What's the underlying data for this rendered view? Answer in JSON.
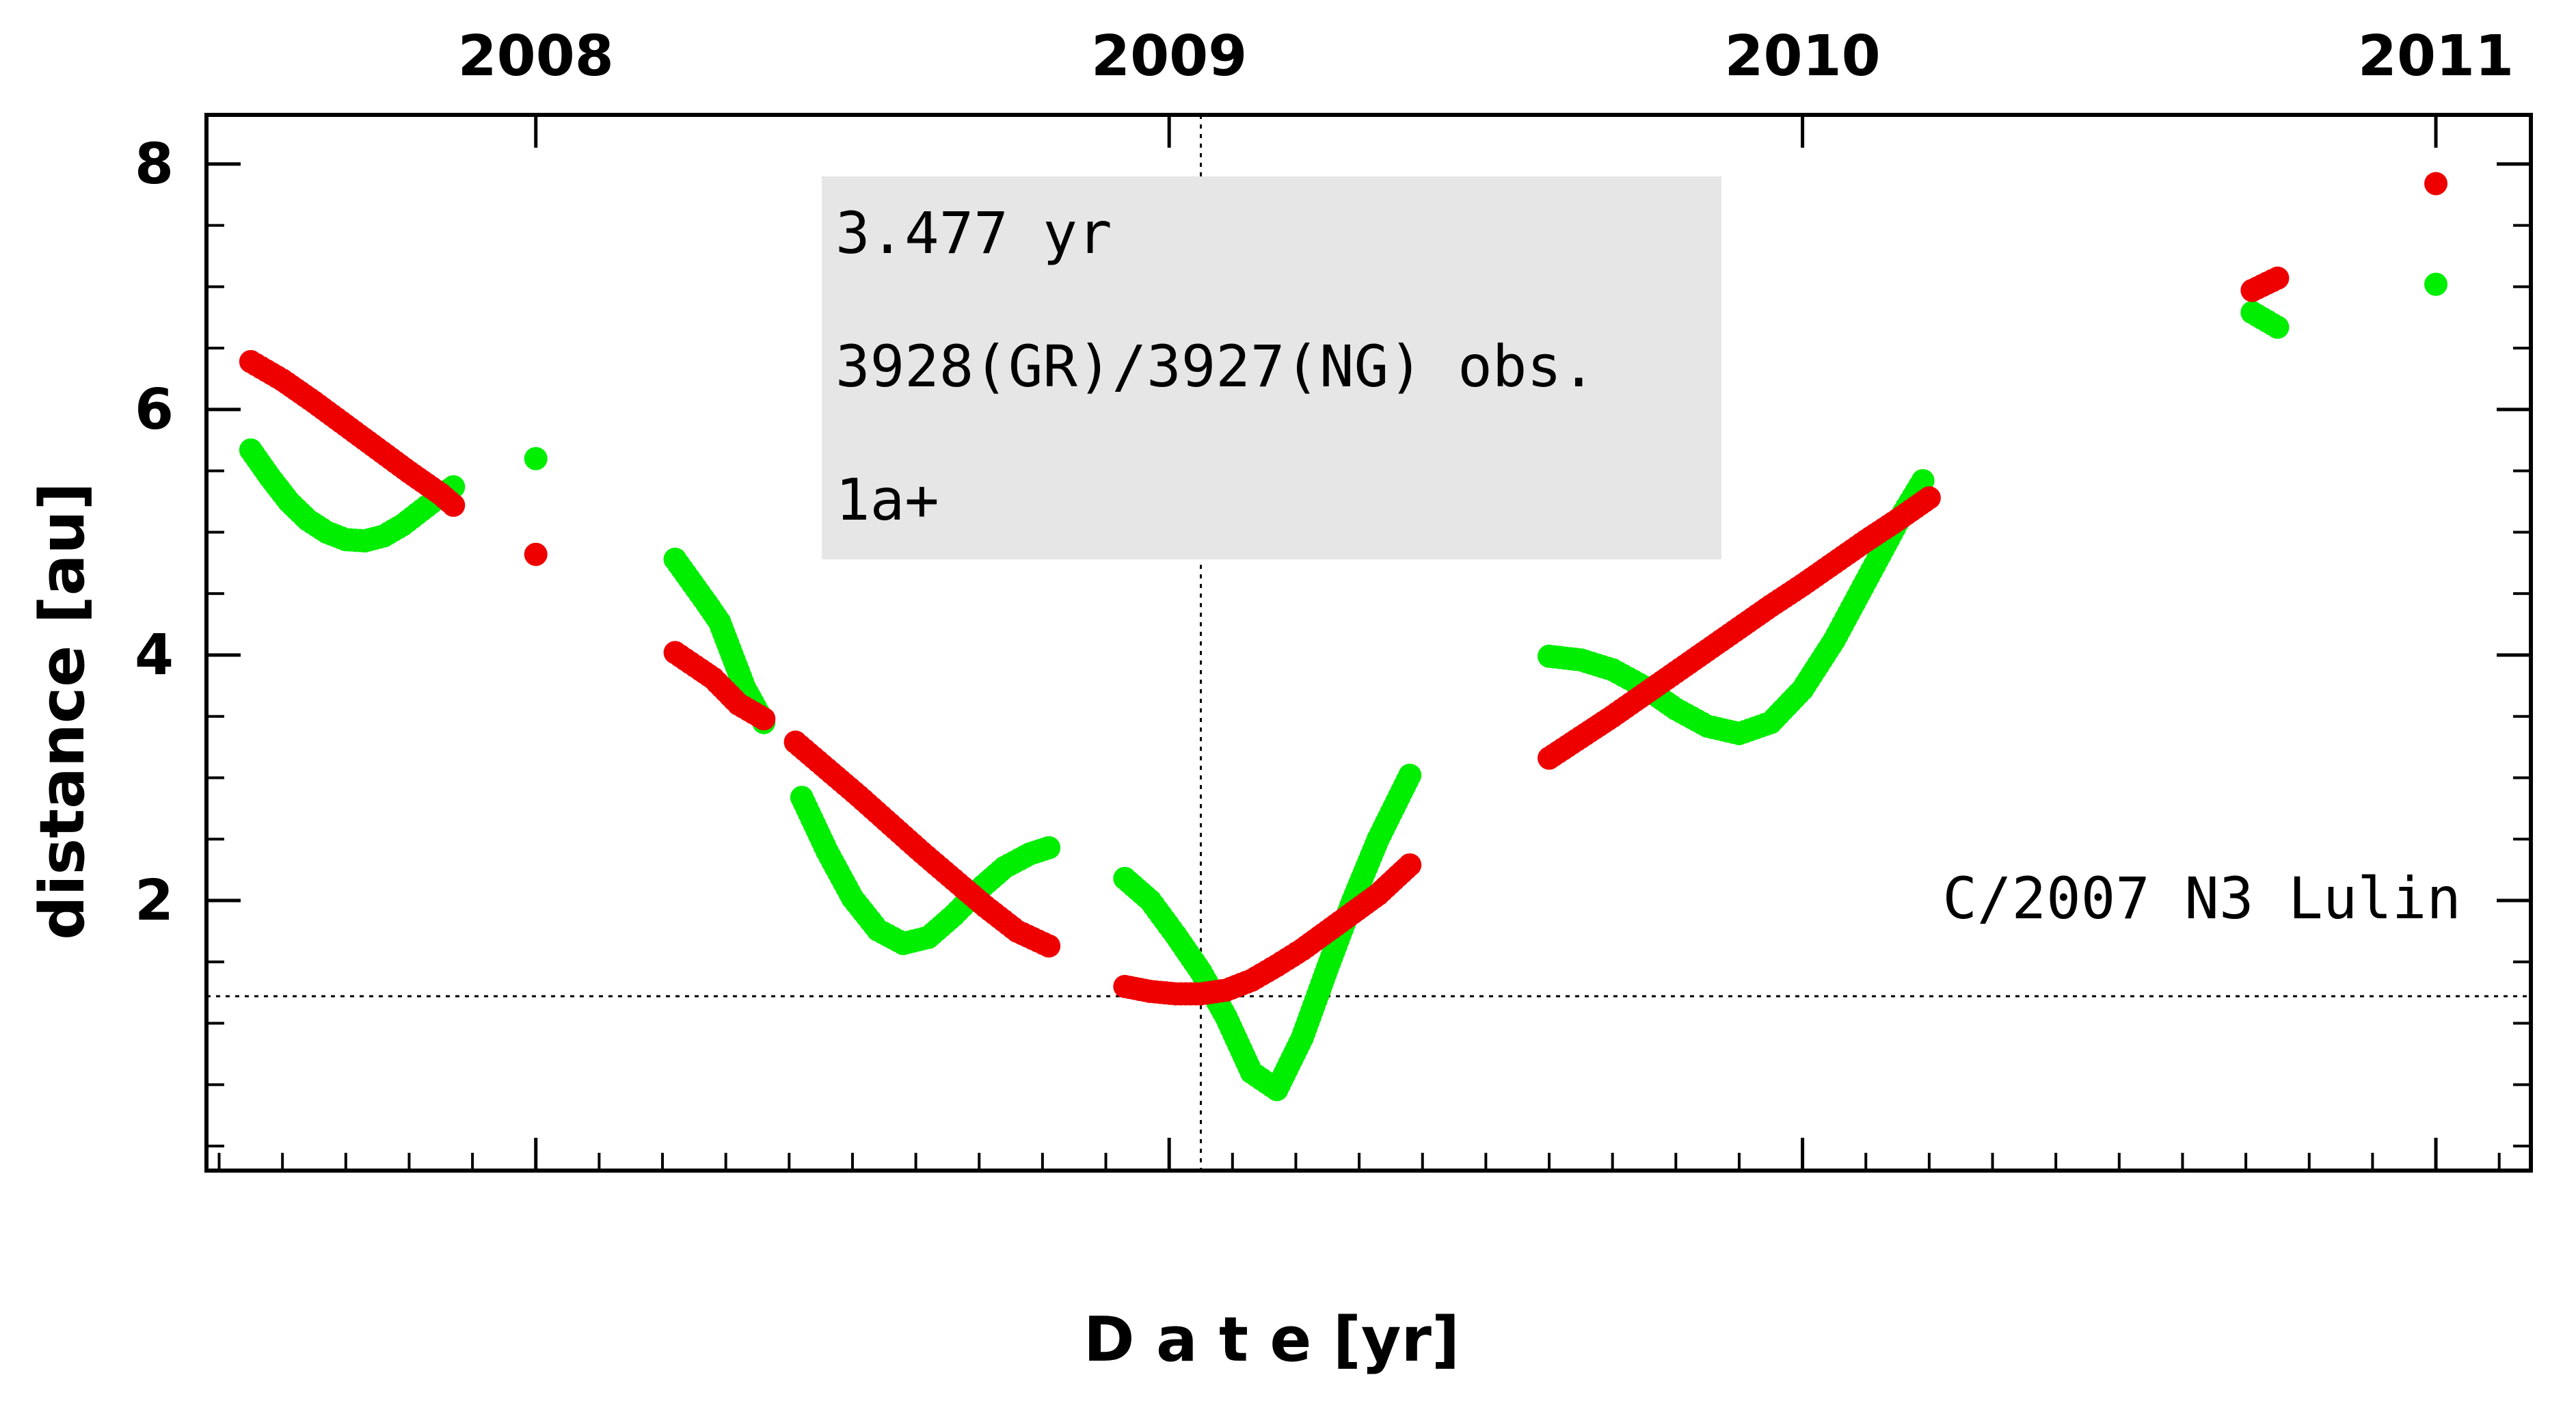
{
  "chart_data": {
    "type": "scatter",
    "xlabel": "D a t e [yr]",
    "ylabel": "distance [au]",
    "xlim": [
      2007.48,
      2011.15
    ],
    "ylim": [
      -0.2,
      8.4
    ],
    "grid": false,
    "x_ticks": [
      2008,
      2009,
      2010,
      2011
    ],
    "y_ticks": [
      2,
      4,
      6,
      8
    ],
    "vertical_reference_x": 2009.05,
    "horizontal_reference_y": 1.22,
    "info_box": [
      "3.477 yr",
      "3928(GR)/3927(NG) obs.",
      "1a+"
    ],
    "object_label": "C/2007 N3 Lulin",
    "colors": {
      "green_series": "#00ee00",
      "red_series": "#ee0000"
    },
    "green_series_segments": [
      {
        "x": [
          2007.55,
          2007.58,
          2007.61,
          2007.64,
          2007.67,
          2007.7,
          2007.73,
          2007.76,
          2007.79,
          2007.82,
          2007.85,
          2007.87
        ],
        "y": [
          5.67,
          5.45,
          5.25,
          5.1,
          5.0,
          4.94,
          4.93,
          4.97,
          5.06,
          5.18,
          5.3,
          5.37
        ]
      },
      {
        "x": [
          2008.0
        ],
        "y": [
          5.6
        ]
      },
      {
        "x": [
          2008.22,
          2008.27,
          2008.29,
          2008.33,
          2008.36
        ],
        "y": [
          4.78,
          4.42,
          4.27,
          3.73,
          3.45
        ]
      },
      {
        "x": [
          2008.42,
          2008.46,
          2008.5,
          2008.54,
          2008.58,
          2008.62,
          2008.66,
          2008.7,
          2008.74,
          2008.78,
          2008.81
        ],
        "y": [
          2.84,
          2.4,
          2.02,
          1.76,
          1.65,
          1.7,
          1.88,
          2.09,
          2.27,
          2.38,
          2.43
        ]
      },
      {
        "x": [
          2008.93,
          2008.97,
          2009.01,
          2009.05,
          2009.09,
          2009.13,
          2009.17,
          2009.21,
          2009.25,
          2009.29,
          2009.33,
          2009.38
        ],
        "y": [
          2.18,
          2.0,
          1.72,
          1.42,
          1.05,
          0.6,
          0.46,
          0.88,
          1.45,
          2.0,
          2.5,
          3.02
        ]
      },
      {
        "x": [
          2009.6,
          2009.65,
          2009.7,
          2009.75,
          2009.8,
          2009.85,
          2009.9,
          2009.95,
          2010.0,
          2010.05,
          2010.1,
          2010.15,
          2010.19
        ],
        "y": [
          3.99,
          3.96,
          3.88,
          3.74,
          3.56,
          3.42,
          3.36,
          3.45,
          3.72,
          4.12,
          4.6,
          5.08,
          5.42
        ]
      },
      {
        "x": [
          2010.71,
          2010.75
        ],
        "y": [
          6.79,
          6.67
        ]
      },
      {
        "x": [
          2011.0
        ],
        "y": [
          7.02
        ]
      }
    ],
    "red_series_segments": [
      {
        "x": [
          2007.55,
          2007.6,
          2007.65,
          2007.7,
          2007.75,
          2007.8,
          2007.85,
          2007.87
        ],
        "y": [
          6.39,
          6.24,
          6.06,
          5.87,
          5.68,
          5.49,
          5.31,
          5.22
        ]
      },
      {
        "x": [
          2008.0
        ],
        "y": [
          4.82
        ]
      },
      {
        "x": [
          2008.22,
          2008.26,
          2008.28,
          2008.32,
          2008.36
        ],
        "y": [
          4.02,
          3.88,
          3.81,
          3.6,
          3.48
        ]
      },
      {
        "x": [
          2008.41,
          2008.46,
          2008.51,
          2008.56,
          2008.61,
          2008.66,
          2008.71,
          2008.76,
          2008.81
        ],
        "y": [
          3.29,
          3.07,
          2.85,
          2.62,
          2.39,
          2.17,
          1.95,
          1.75,
          1.63
        ]
      },
      {
        "x": [
          2008.93,
          2008.97,
          2009.01,
          2009.05,
          2009.09,
          2009.13,
          2009.17,
          2009.21,
          2009.25,
          2009.29,
          2009.33,
          2009.38
        ],
        "y": [
          1.3,
          1.26,
          1.24,
          1.24,
          1.27,
          1.35,
          1.47,
          1.6,
          1.75,
          1.9,
          2.05,
          2.29
        ]
      },
      {
        "x": [
          2009.6,
          2009.65,
          2009.7,
          2009.75,
          2009.8,
          2009.85,
          2009.9,
          2009.95,
          2010.0,
          2010.05,
          2010.1,
          2010.15,
          2010.2
        ],
        "y": [
          3.16,
          3.33,
          3.5,
          3.68,
          3.86,
          4.04,
          4.22,
          4.4,
          4.57,
          4.75,
          4.93,
          5.1,
          5.28
        ]
      },
      {
        "x": [
          2010.71,
          2010.75
        ],
        "y": [
          6.97,
          7.07
        ]
      },
      {
        "x": [
          2011.0
        ],
        "y": [
          7.84
        ]
      }
    ]
  }
}
